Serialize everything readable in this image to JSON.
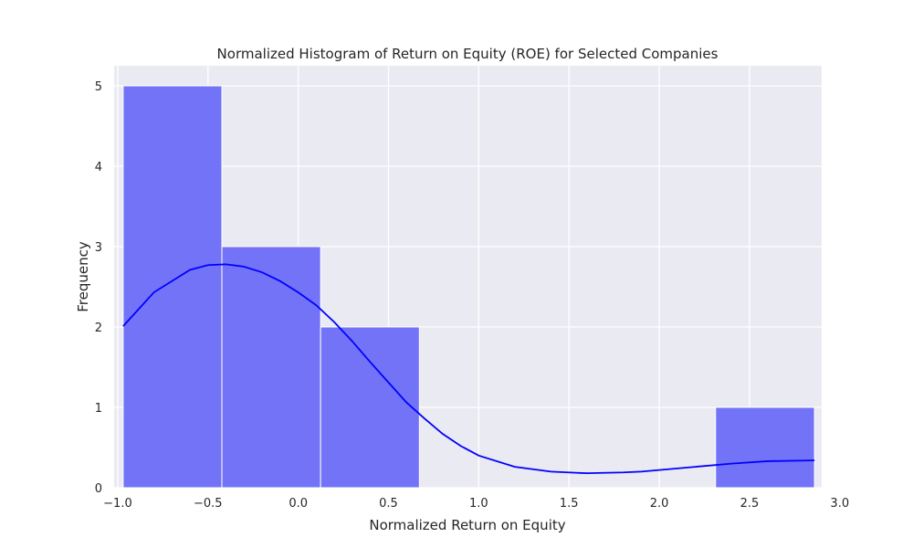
{
  "chart_data": {
    "type": "bar",
    "title": "Normalized Histogram of Return on Equity (ROE) for Selected Companies",
    "xlabel": "Normalized Return on Equity",
    "ylabel": "Frequency",
    "xlim": [
      -1.02,
      2.9
    ],
    "ylim": [
      0,
      5.25
    ],
    "xticks": [
      -1.0,
      -0.5,
      0.0,
      0.5,
      1.0,
      1.5,
      2.0,
      2.5,
      3.0
    ],
    "xtick_labels": [
      "−1.0",
      "−0.5",
      "0.0",
      "0.5",
      "1.0",
      "1.5",
      "2.0",
      "2.5",
      "3.0"
    ],
    "yticks": [
      0,
      1,
      2,
      3,
      4,
      5
    ],
    "ytick_labels": [
      "0",
      "1",
      "2",
      "3",
      "4",
      "5"
    ],
    "grid": true,
    "bin_edges": [
      -0.97,
      -0.423,
      0.124,
      0.671,
      1.218,
      1.765,
      2.312,
      2.86
    ],
    "counts": [
      5,
      3,
      2,
      0,
      0,
      0,
      1
    ],
    "bar_color": "#7373f7",
    "kde": {
      "color": "#0000ff",
      "x": [
        -0.97,
        -0.8,
        -0.6,
        -0.5,
        -0.4,
        -0.3,
        -0.2,
        -0.1,
        0.0,
        0.1,
        0.2,
        0.3,
        0.4,
        0.5,
        0.6,
        0.7,
        0.8,
        0.9,
        1.0,
        1.2,
        1.4,
        1.6,
        1.8,
        1.9,
        2.0,
        2.2,
        2.4,
        2.6,
        2.86
      ],
      "y": [
        2.01,
        2.43,
        2.71,
        2.77,
        2.78,
        2.75,
        2.68,
        2.57,
        2.43,
        2.27,
        2.06,
        1.82,
        1.56,
        1.31,
        1.06,
        0.86,
        0.67,
        0.52,
        0.4,
        0.26,
        0.2,
        0.18,
        0.19,
        0.2,
        0.22,
        0.26,
        0.3,
        0.33,
        0.34
      ]
    }
  }
}
